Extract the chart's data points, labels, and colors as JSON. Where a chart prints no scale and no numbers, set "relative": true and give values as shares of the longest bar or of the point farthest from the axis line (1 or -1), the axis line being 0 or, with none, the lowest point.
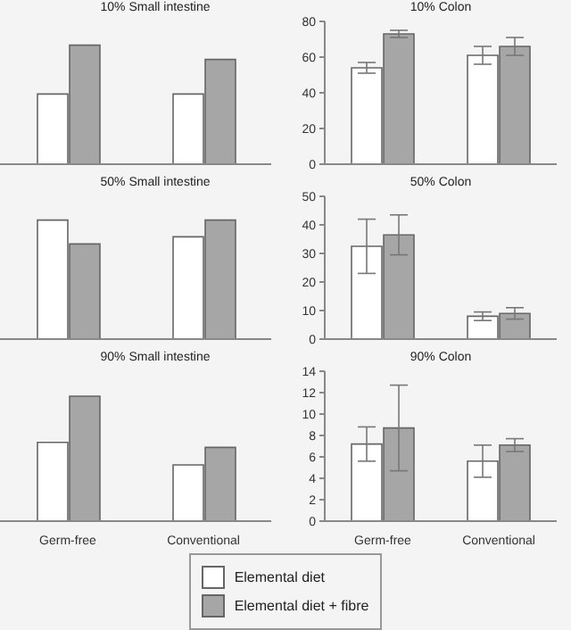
{
  "chart_data": [
    {
      "type": "bar",
      "title": "10% Small intestine",
      "relative": true,
      "categories": [
        null,
        null
      ],
      "tick_labels": false,
      "series": [
        {
          "color": "#ffffff",
          "values": [
            0.59,
            0.59
          ]
        },
        {
          "color": "#a6a6a6",
          "values": [
            1.0,
            0.88
          ]
        }
      ]
    },
    {
      "type": "bar",
      "title": "10% Colon",
      "categories": [
        null,
        null
      ],
      "tick_labels": "y",
      "ylim": [
        0,
        80
      ],
      "yticks": [
        0,
        20,
        40,
        60,
        80
      ],
      "series": [
        {
          "color": "#ffffff",
          "values": [
            54,
            61
          ],
          "errors": [
            3,
            5
          ]
        },
        {
          "color": "#a6a6a6",
          "values": [
            73,
            66
          ],
          "errors": [
            2,
            5
          ]
        }
      ]
    },
    {
      "type": "bar",
      "title": "50% Small intestine",
      "relative": true,
      "categories": [
        null,
        null
      ],
      "tick_labels": false,
      "series": [
        {
          "color": "#ffffff",
          "values": [
            1.0,
            0.86
          ]
        },
        {
          "color": "#a6a6a6",
          "values": [
            0.8,
            1.0
          ]
        }
      ]
    },
    {
      "type": "bar",
      "title": "50% Colon",
      "categories": [
        null,
        null
      ],
      "tick_labels": "y",
      "ylim": [
        0,
        50
      ],
      "yticks": [
        0,
        10,
        20,
        30,
        40,
        50
      ],
      "series": [
        {
          "color": "#ffffff",
          "values": [
            32.5,
            8
          ],
          "errors": [
            9.5,
            1.5
          ]
        },
        {
          "color": "#a6a6a6",
          "values": [
            36.5,
            9
          ],
          "errors": [
            7,
            2
          ]
        }
      ]
    },
    {
      "type": "bar",
      "title": "90% Small intestine",
      "relative": true,
      "categories": [
        "Germ-free",
        "Conventional"
      ],
      "tick_labels": "x",
      "series": [
        {
          "color": "#ffffff",
          "values": [
            0.63,
            0.45
          ]
        },
        {
          "color": "#a6a6a6",
          "values": [
            1.0,
            0.59
          ]
        }
      ]
    },
    {
      "type": "bar",
      "title": "90% Colon",
      "categories": [
        "Germ-free",
        "Conventional"
      ],
      "ylim": [
        0,
        14
      ],
      "yticks": [
        0,
        2,
        4,
        6,
        8,
        10,
        12,
        14
      ],
      "legend": "bottom",
      "series": [
        {
          "name": "Elemental diet",
          "color": "#ffffff",
          "values": [
            7.2,
            5.6
          ],
          "errors": [
            1.6,
            1.5
          ]
        },
        {
          "name": "Elemental diet + fibre",
          "color": "#a6a6a6",
          "values": [
            8.7,
            7.1
          ],
          "errors": [
            4.0,
            0.6
          ]
        }
      ]
    }
  ]
}
